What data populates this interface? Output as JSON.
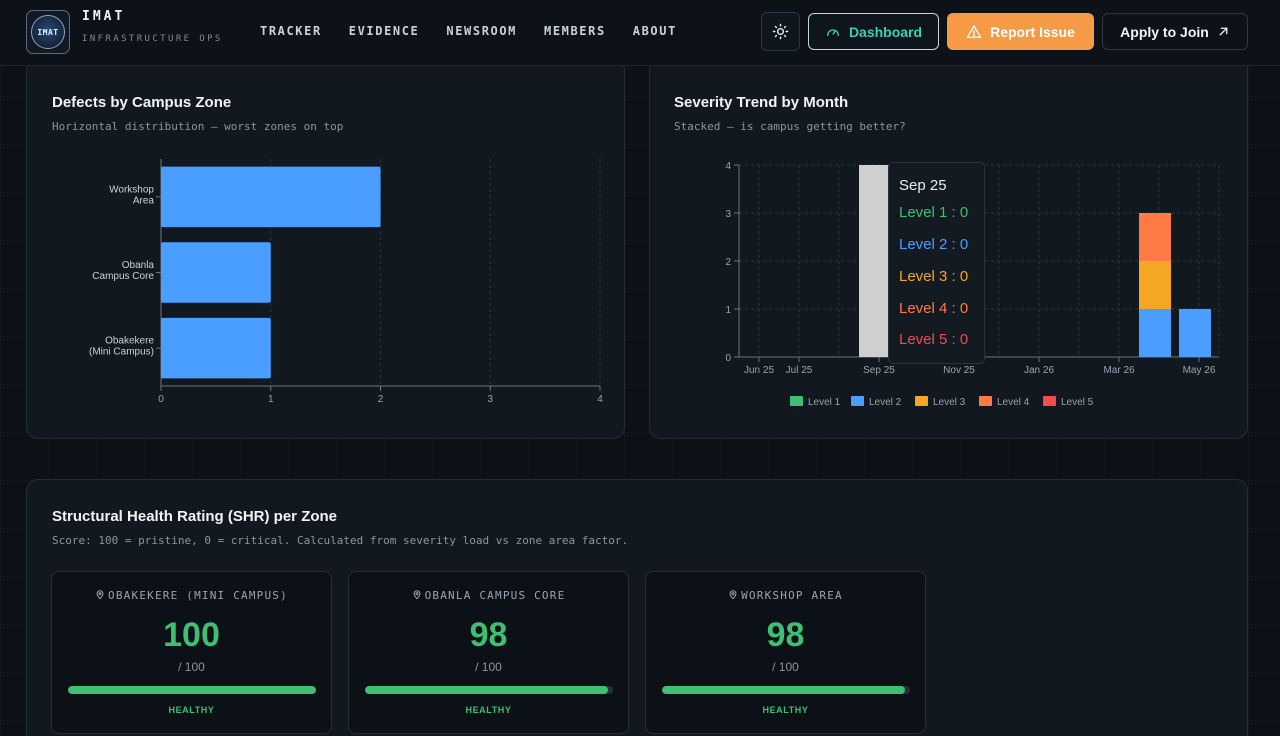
{
  "brand": {
    "title": "IMAT",
    "subtitle": "INFRASTRUCTURE OPS",
    "logo_text": "IMAT"
  },
  "nav": [
    {
      "label": "TRACKER"
    },
    {
      "label": "EVIDENCE"
    },
    {
      "label": "NEWSROOM"
    },
    {
      "label": "MEMBERS"
    },
    {
      "label": "ABOUT"
    }
  ],
  "header_actions": {
    "theme_icon": "sun-icon",
    "dashboard_label": "Dashboard",
    "dashboard_icon": "gauge-icon",
    "report_label": "Report Issue",
    "report_icon": "warning-icon",
    "apply_label": "Apply to Join",
    "apply_icon": "arrow-up-right-icon",
    "colors": {
      "dashboard": "#3ccfb5",
      "report": "#f59a45"
    }
  },
  "zone_chart": {
    "title": "Defects by Campus Zone",
    "subtitle": "Horizontal distribution — worst zones on top"
  },
  "trend_chart": {
    "title": "Severity Trend by Month",
    "subtitle": "Stacked — is campus getting better?"
  },
  "tooltip": {
    "title": "Sep 25",
    "rows": [
      {
        "label": "Level 1 : 0",
        "color": "#3fbf72"
      },
      {
        "label": "Level 2 : 0",
        "color": "#4a9eff"
      },
      {
        "label": "Level 3 : 0",
        "color": "#f5a623"
      },
      {
        "label": "Level 4 : 0",
        "color": "#ff7a45"
      },
      {
        "label": "Level 5 : 0",
        "color": "#f24c4c"
      }
    ]
  },
  "chart_data": [
    {
      "type": "bar",
      "orientation": "horizontal",
      "title": "Defects by Campus Zone",
      "categories": [
        [
          "Workshop",
          "Area"
        ],
        [
          "Obanla",
          "Campus Core"
        ],
        [
          "Obakekere",
          "(Mini Campus)"
        ]
      ],
      "values": [
        2,
        1,
        1
      ],
      "xlim": [
        0,
        4
      ],
      "xticks": [
        "0",
        "1",
        "2",
        "3",
        "4"
      ],
      "color": "#4a9eff",
      "grid": true
    },
    {
      "type": "bar",
      "stacked": true,
      "title": "Severity Trend by Month",
      "xtick_labels": [
        "Jun 25",
        "Jul 25",
        "Sep 25",
        "Nov 25",
        "Jan 26",
        "Mar 26",
        "May 26"
      ],
      "ylim": [
        0,
        4
      ],
      "yticks": [
        "0",
        "1",
        "2",
        "3",
        "4"
      ],
      "legend_placement": "bottom",
      "highlighted_month": "Sep 25",
      "highlight_color": "#cfcfcf",
      "series": [
        {
          "name": "Level 1",
          "color": "#3fbf72"
        },
        {
          "name": "Level 2",
          "color": "#4a9eff"
        },
        {
          "name": "Level 3",
          "color": "#f5a623"
        },
        {
          "name": "Level 4",
          "color": "#ff7a45"
        },
        {
          "name": "Level 5",
          "color": "#f24c4c"
        }
      ],
      "bars": [
        {
          "month": "Apr 26",
          "stack": {
            "Level 2": 1,
            "Level 3": 1,
            "Level 4": 1
          }
        },
        {
          "month": "May 26",
          "stack": {
            "Level 2": 1
          }
        }
      ]
    }
  ],
  "shr": {
    "title": "Structural Health Rating (SHR) per Zone",
    "subtitle": "Score: 100 = pristine, 0 = critical. Calculated from severity load vs zone area factor.",
    "zones": [
      {
        "name": "OBAKEKERE (MINI CAMPUS)",
        "score": "100",
        "max": "/ 100",
        "status": "HEALTHY",
        "fraction": 1.0,
        "icon": "map-pin-icon"
      },
      {
        "name": "OBANLA CAMPUS CORE",
        "score": "98",
        "max": "/ 100",
        "status": "HEALTHY",
        "fraction": 0.98,
        "icon": "map-pin-icon"
      },
      {
        "name": "WORKSHOP AREA",
        "score": "98",
        "max": "/ 100",
        "status": "HEALTHY",
        "fraction": 0.98,
        "icon": "map-pin-icon"
      }
    ]
  }
}
